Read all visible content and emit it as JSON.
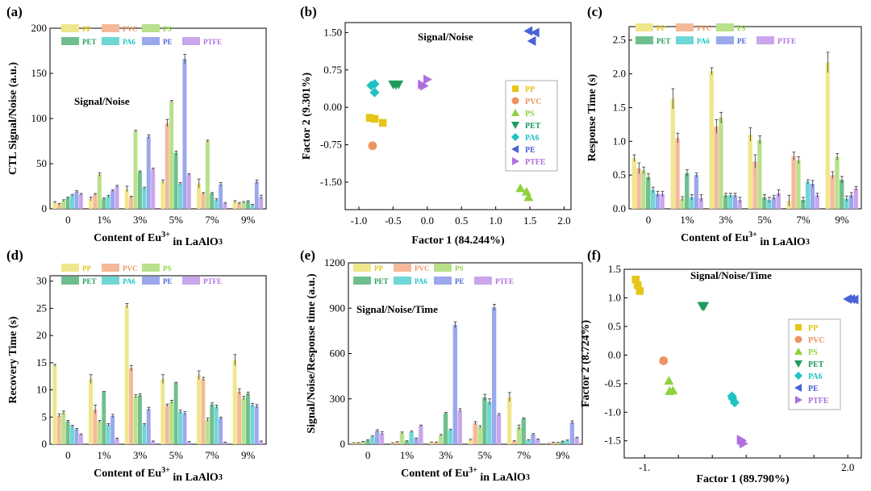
{
  "colors": {
    "PP": "#f0e68c",
    "PVC": "#f5b999",
    "PS": "#b9e08a",
    "PET": "#6fbf8e",
    "PA6": "#6fd6d6",
    "PE": "#9aa8ec",
    "PTFE": "#c9a6ec",
    "PP_marker": "#e6c619",
    "PVC_marker": "#ee9462",
    "PS_marker": "#8ed23c",
    "PET_marker": "#1f9a5c",
    "PA6_marker": "#1fc2c2",
    "PE_marker": "#4a63d6",
    "PTFE_marker": "#b06ee0"
  },
  "legend_items": [
    "PP",
    "PVC",
    "PS",
    "PET",
    "PA6",
    "PE",
    "PTFE"
  ],
  "chart_data": [
    {
      "panel": "(a)",
      "type": "bar",
      "annotation": "Signal/Noise",
      "xlabel": "Content of Eu3+ in LaAlO3",
      "ylabel": "CTL Signal/Noise (a.u.)",
      "ylim": [
        0,
        200
      ],
      "yticks": [
        "0",
        "50",
        "100",
        "150",
        "200"
      ],
      "categories": [
        "0",
        "1%",
        "3%",
        "5%",
        "7%",
        "9%"
      ],
      "series": [
        {
          "name": "PP",
          "values": [
            7,
            11,
            22,
            30,
            28,
            8
          ],
          "errors": [
            1,
            2,
            3,
            2,
            5,
            1
          ]
        },
        {
          "name": "PVC",
          "values": [
            5,
            16,
            13,
            95,
            17,
            6
          ],
          "errors": [
            1,
            1,
            1,
            4,
            1,
            1
          ]
        },
        {
          "name": "PS",
          "values": [
            9,
            38,
            86,
            119,
            75,
            7
          ],
          "errors": [
            1,
            2,
            1,
            1,
            1,
            1
          ]
        },
        {
          "name": "PET",
          "values": [
            12,
            11,
            41,
            62,
            17,
            8
          ],
          "errors": [
            1,
            1,
            1,
            2,
            1,
            1
          ]
        },
        {
          "name": "PA6",
          "values": [
            15,
            14,
            23,
            28,
            10,
            4
          ],
          "errors": [
            1,
            1,
            1,
            1,
            1,
            1
          ]
        },
        {
          "name": "PE",
          "values": [
            19,
            20,
            80,
            166,
            27,
            30
          ],
          "errors": [
            1,
            1,
            2,
            5,
            2,
            2
          ]
        },
        {
          "name": "PTFE",
          "values": [
            16,
            25,
            44,
            38,
            6,
            13
          ],
          "errors": [
            1,
            1,
            1,
            1,
            1,
            2
          ]
        }
      ]
    },
    {
      "panel": "(b)",
      "type": "scatter",
      "annotation": "Signal/Noise",
      "xlabel": "Factor 1 (84.244%)",
      "ylabel": "Factor 2 (9.301%)",
      "xlim": [
        -1.2,
        2.1
      ],
      "ylim": [
        -2.05,
        1.7
      ],
      "xticks": [
        "-1.0",
        "-0.5",
        "0.0",
        "0.5",
        "1.0",
        "1.5",
        "2.0"
      ],
      "yticks": [
        "-1.50",
        "-0.75",
        "0.00",
        "0.75",
        "1.50"
      ],
      "series": [
        {
          "name": "PP",
          "marker": "square",
          "points": [
            [
              -0.84,
              -0.21
            ],
            [
              -0.77,
              -0.23
            ],
            [
              -0.65,
              -0.31
            ]
          ]
        },
        {
          "name": "PVC",
          "marker": "circle",
          "points": [
            [
              -0.8,
              -0.77
            ]
          ]
        },
        {
          "name": "PS",
          "marker": "triangle-up",
          "points": [
            [
              1.36,
              -1.62
            ],
            [
              1.45,
              -1.69
            ],
            [
              1.48,
              -1.8
            ]
          ]
        },
        {
          "name": "PET",
          "marker": "triangle-down",
          "points": [
            [
              -0.5,
              0.46
            ],
            [
              -0.42,
              0.46
            ],
            [
              -0.46,
              0.45
            ]
          ]
        },
        {
          "name": "PA6",
          "marker": "diamond",
          "points": [
            [
              -0.82,
              0.44
            ],
            [
              -0.77,
              0.47
            ],
            [
              -0.77,
              0.3
            ]
          ]
        },
        {
          "name": "PE",
          "marker": "triangle-left",
          "points": [
            [
              1.48,
              1.53
            ],
            [
              1.58,
              1.5
            ],
            [
              1.53,
              1.33
            ]
          ]
        },
        {
          "name": "PTFE",
          "marker": "triangle-right",
          "points": [
            [
              -0.08,
              0.46
            ],
            [
              0.0,
              0.56
            ],
            [
              -0.05,
              0.43
            ]
          ]
        }
      ]
    },
    {
      "panel": "(c)",
      "type": "bar",
      "annotation": "",
      "xlabel": "Content of Eu3+ in LaAlO3",
      "ylabel": "Response Time (s)",
      "ylim": [
        0,
        2.7
      ],
      "yticks": [
        "0.0",
        "0.5",
        "1.0",
        "1.5",
        "2.0",
        "2.5"
      ],
      "categories": [
        "0",
        "1%",
        "3%",
        "5%",
        "7%",
        "9%"
      ],
      "series": [
        {
          "name": "PP",
          "values": [
            0.75,
            1.63,
            2.04,
            1.1,
            0.12,
            2.17
          ],
          "errors": [
            0.05,
            0.15,
            0.05,
            0.1,
            0.08,
            0.15
          ]
        },
        {
          "name": "PVC",
          "values": [
            0.6,
            1.05,
            1.22,
            0.7,
            0.78,
            0.5
          ],
          "errors": [
            0.08,
            0.07,
            0.1,
            0.1,
            0.06,
            0.05
          ]
        },
        {
          "name": "PS",
          "values": [
            0.57,
            0.15,
            1.35,
            1.02,
            0.72,
            0.77
          ],
          "errors": [
            0.05,
            0.03,
            0.08,
            0.06,
            0.05,
            0.05
          ]
        },
        {
          "name": "PET",
          "values": [
            0.47,
            0.53,
            0.2,
            0.17,
            0.13,
            0.43
          ],
          "errors": [
            0.05,
            0.05,
            0.03,
            0.04,
            0.04,
            0.05
          ]
        },
        {
          "name": "PA6",
          "values": [
            0.28,
            0.17,
            0.2,
            0.13,
            0.4,
            0.15
          ],
          "errors": [
            0.04,
            0.04,
            0.03,
            0.04,
            0.03,
            0.04
          ]
        },
        {
          "name": "PE",
          "values": [
            0.22,
            0.5,
            0.2,
            0.17,
            0.37,
            0.2
          ],
          "errors": [
            0.04,
            0.03,
            0.03,
            0.03,
            0.05,
            0.04
          ]
        },
        {
          "name": "PTFE",
          "values": [
            0.22,
            0.16,
            0.13,
            0.23,
            0.2,
            0.3
          ],
          "errors": [
            0.04,
            0.05,
            0.04,
            0.05,
            0.03,
            0.03
          ]
        }
      ]
    },
    {
      "panel": "(d)",
      "type": "bar",
      "annotation": "",
      "xlabel": "Content of Eu3+ in LaAlO3",
      "ylabel": "Recovery Time (s)",
      "ylim": [
        0,
        31
      ],
      "yticks": [
        "0",
        "5",
        "10",
        "15",
        "20",
        "25",
        "30"
      ],
      "categories": [
        "0",
        "1%",
        "3%",
        "5%",
        "7%",
        "9%"
      ],
      "series": [
        {
          "name": "PP",
          "values": [
            14.5,
            12,
            25.5,
            12,
            12.7,
            15.5
          ],
          "errors": [
            0.2,
            0.8,
            0.4,
            0.8,
            0.8,
            1
          ]
        },
        {
          "name": "PVC",
          "values": [
            5.3,
            6.4,
            14,
            7.2,
            12,
            9.7
          ],
          "errors": [
            0.3,
            0.8,
            0.5,
            0.2,
            0.3,
            0.5
          ]
        },
        {
          "name": "PS",
          "values": [
            5.8,
            4.2,
            8.8,
            7.8,
            4.5,
            8.5
          ],
          "errors": [
            0.3,
            0.2,
            0.3,
            0.3,
            0.3,
            0.3
          ]
        },
        {
          "name": "PET",
          "values": [
            4.2,
            9.6,
            9,
            11.3,
            7.3,
            9.3
          ],
          "errors": [
            0.2,
            0.1,
            0.3,
            0.1,
            0.3,
            0.3
          ]
        },
        {
          "name": "PA6",
          "values": [
            3.3,
            3.6,
            3.6,
            6,
            6.9,
            7.2
          ],
          "errors": [
            0.2,
            0.2,
            0.2,
            0.3,
            0.3,
            0.3
          ]
        },
        {
          "name": "PE",
          "values": [
            2.7,
            5.2,
            6.5,
            5.7,
            4.8,
            7
          ],
          "errors": [
            0.2,
            0.3,
            0.3,
            0.3,
            0.2,
            0.3
          ]
        },
        {
          "name": "PTFE",
          "values": [
            1.8,
            1,
            0.5,
            0.4,
            0.3,
            0.5
          ],
          "errors": [
            0.1,
            0.1,
            0.1,
            0.1,
            0.1,
            0.1
          ]
        }
      ]
    },
    {
      "panel": "(e)",
      "type": "bar",
      "annotation": "Signal/Noise/Time",
      "xlabel": "Content of Eu3+ in LaAlO3",
      "ylabel": "Signal/Noise/Response time (a.u.)",
      "ylim": [
        0,
        1200
      ],
      "yticks": [
        "0",
        "300",
        "600",
        "900",
        "1200"
      ],
      "categories": [
        "0",
        "1%",
        "3%",
        "5%",
        "7%",
        "9%"
      ],
      "series": [
        {
          "name": "PP",
          "values": [
            8,
            8,
            12,
            28,
            312,
            4
          ],
          "errors": [
            2,
            2,
            3,
            5,
            30,
            1
          ]
        },
        {
          "name": "PVC",
          "values": [
            9,
            15,
            12,
            140,
            20,
            12
          ],
          "errors": [
            2,
            2,
            3,
            10,
            3,
            2
          ]
        },
        {
          "name": "PS",
          "values": [
            16,
            75,
            60,
            115,
            112,
            10
          ],
          "errors": [
            3,
            6,
            5,
            8,
            15,
            2
          ]
        },
        {
          "name": "PET",
          "values": [
            25,
            20,
            205,
            310,
            170,
            18
          ],
          "errors": [
            4,
            3,
            6,
            20,
            5,
            3
          ]
        },
        {
          "name": "PA6",
          "values": [
            50,
            82,
            95,
            280,
            28,
            25
          ],
          "errors": [
            5,
            5,
            5,
            20,
            3,
            3
          ]
        },
        {
          "name": "PE",
          "values": [
            88,
            38,
            790,
            905,
            65,
            145
          ],
          "errors": [
            8,
            4,
            20,
            20,
            6,
            10
          ]
        },
        {
          "name": "PTFE",
          "values": [
            72,
            122,
            225,
            195,
            32,
            43
          ],
          "errors": [
            10,
            5,
            10,
            8,
            3,
            4
          ]
        }
      ]
    },
    {
      "panel": "(f)",
      "type": "scatter",
      "annotation": "Signal/Noise/Time",
      "xlabel": "Factor 1 (89.790%)",
      "ylabel": "Factor 2 (8.724%)",
      "xlim": [
        -1.3,
        2.2
      ],
      "ylim": [
        -1.8,
        1.5
      ],
      "xticks": [
        "-1.",
        "2.0"
      ],
      "yticks": [
        "-1.5",
        "-1.0",
        "-0.5",
        "0.0",
        "0.5",
        "1.0",
        "1.5"
      ],
      "series": [
        {
          "name": "PP",
          "marker": "square",
          "points": [
            [
              -1.13,
              1.32
            ],
            [
              -1.1,
              1.22
            ],
            [
              -1.07,
              1.12
            ]
          ]
        },
        {
          "name": "PVC",
          "marker": "circle",
          "points": [
            [
              -0.72,
              -0.1
            ]
          ]
        },
        {
          "name": "PS",
          "marker": "triangle-up",
          "points": [
            [
              -0.64,
              -0.45
            ],
            [
              -0.63,
              -0.63
            ],
            [
              -0.58,
              -0.62
            ]
          ]
        },
        {
          "name": "PET",
          "marker": "triangle-down",
          "points": [
            [
              -0.15,
              0.86
            ],
            [
              -0.12,
              0.86
            ],
            [
              -0.13,
              0.85
            ]
          ]
        },
        {
          "name": "PA6",
          "marker": "diamond",
          "points": [
            [
              0.29,
              -0.72
            ],
            [
              0.33,
              -0.83
            ],
            [
              0.3,
              -0.76
            ]
          ]
        },
        {
          "name": "PE",
          "marker": "triangle-left",
          "points": [
            [
              2.0,
              0.98
            ],
            [
              2.05,
              0.98
            ],
            [
              2.1,
              0.97
            ]
          ]
        },
        {
          "name": "PTFE",
          "marker": "triangle-right",
          "points": [
            [
              0.42,
              -1.48
            ],
            [
              0.46,
              -1.55
            ],
            [
              0.44,
              -1.5
            ]
          ]
        }
      ]
    }
  ]
}
